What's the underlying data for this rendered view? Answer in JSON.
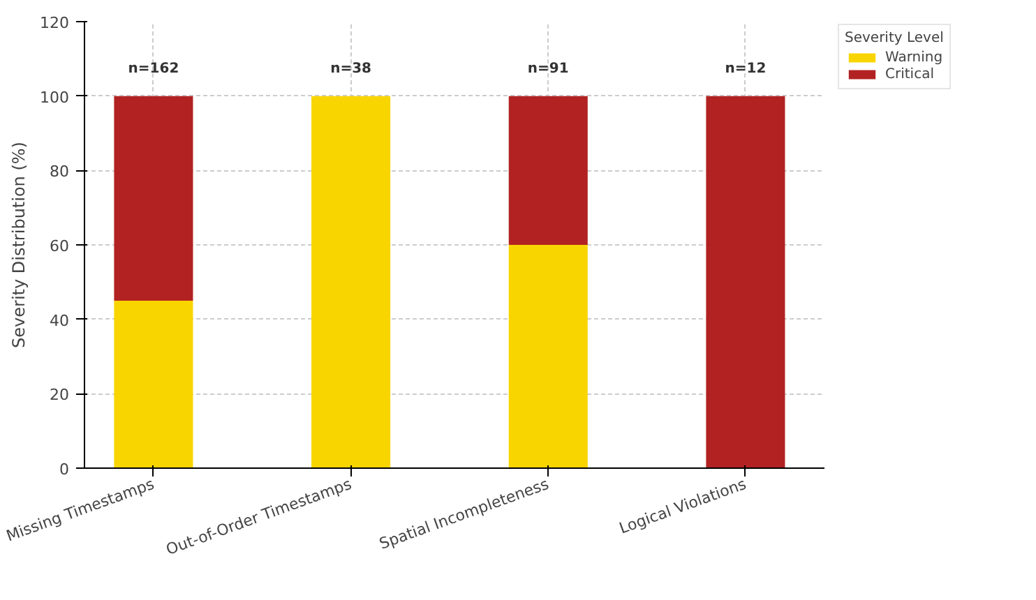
{
  "chart_data": {
    "type": "bar",
    "stacked": true,
    "ylabel": "Severity Distribution (%)",
    "legend_title": "Severity Level",
    "categories": [
      "Missing Timestamps",
      "Out-of-Order Timestamps",
      "Spatial Incompleteness",
      "Logical Violations"
    ],
    "series": [
      {
        "name": "Warning",
        "color": "#f9d500",
        "values": [
          45,
          100,
          60,
          0
        ]
      },
      {
        "name": "Critical",
        "color": "#b22222",
        "values": [
          55,
          0,
          40,
          100
        ]
      }
    ],
    "ylim": [
      0,
      120
    ],
    "yticks": [
      0,
      20,
      40,
      60,
      80,
      100,
      120
    ],
    "grid": true,
    "legend": "top right",
    "annotations": [
      "n=162",
      "n=38",
      "n=91",
      "n=12"
    ]
  }
}
